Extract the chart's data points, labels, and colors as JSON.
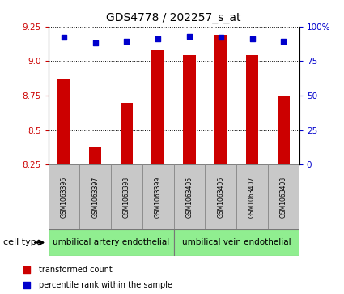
{
  "title": "GDS4778 / 202257_s_at",
  "samples": [
    "GSM1063396",
    "GSM1063397",
    "GSM1063398",
    "GSM1063399",
    "GSM1063405",
    "GSM1063406",
    "GSM1063407",
    "GSM1063408"
  ],
  "transformed_count": [
    8.87,
    8.38,
    8.7,
    9.08,
    9.04,
    9.19,
    9.04,
    8.75
  ],
  "percentile_rank": [
    92,
    88,
    89,
    91,
    93,
    92,
    91,
    89
  ],
  "ylim_left": [
    8.25,
    9.25
  ],
  "ylim_right": [
    0,
    100
  ],
  "yticks_left": [
    8.25,
    8.5,
    8.75,
    9.0,
    9.25
  ],
  "yticks_right": [
    0,
    25,
    50,
    75,
    100
  ],
  "bar_color": "#cc0000",
  "dot_color": "#0000cc",
  "bar_width": 0.4,
  "cell_type_groups": [
    {
      "label": "umbilical artery endothelial",
      "start": 0,
      "end": 4,
      "color": "#90ee90"
    },
    {
      "label": "umbilical vein endothelial",
      "start": 4,
      "end": 8,
      "color": "#90ee90"
    }
  ],
  "cell_type_label": "cell type",
  "legend_items": [
    {
      "label": "transformed count",
      "color": "#cc0000"
    },
    {
      "label": "percentile rank within the sample",
      "color": "#0000cc"
    }
  ],
  "grid_color": "black",
  "background_color": "#ffffff",
  "label_area_color": "#c8c8c8",
  "tick_color_left": "#cc0000",
  "tick_color_right": "#0000cc",
  "title_fontsize": 10,
  "tick_fontsize": 7.5,
  "sample_fontsize": 5.5,
  "cell_type_fontsize": 7.5,
  "legend_fontsize": 7
}
